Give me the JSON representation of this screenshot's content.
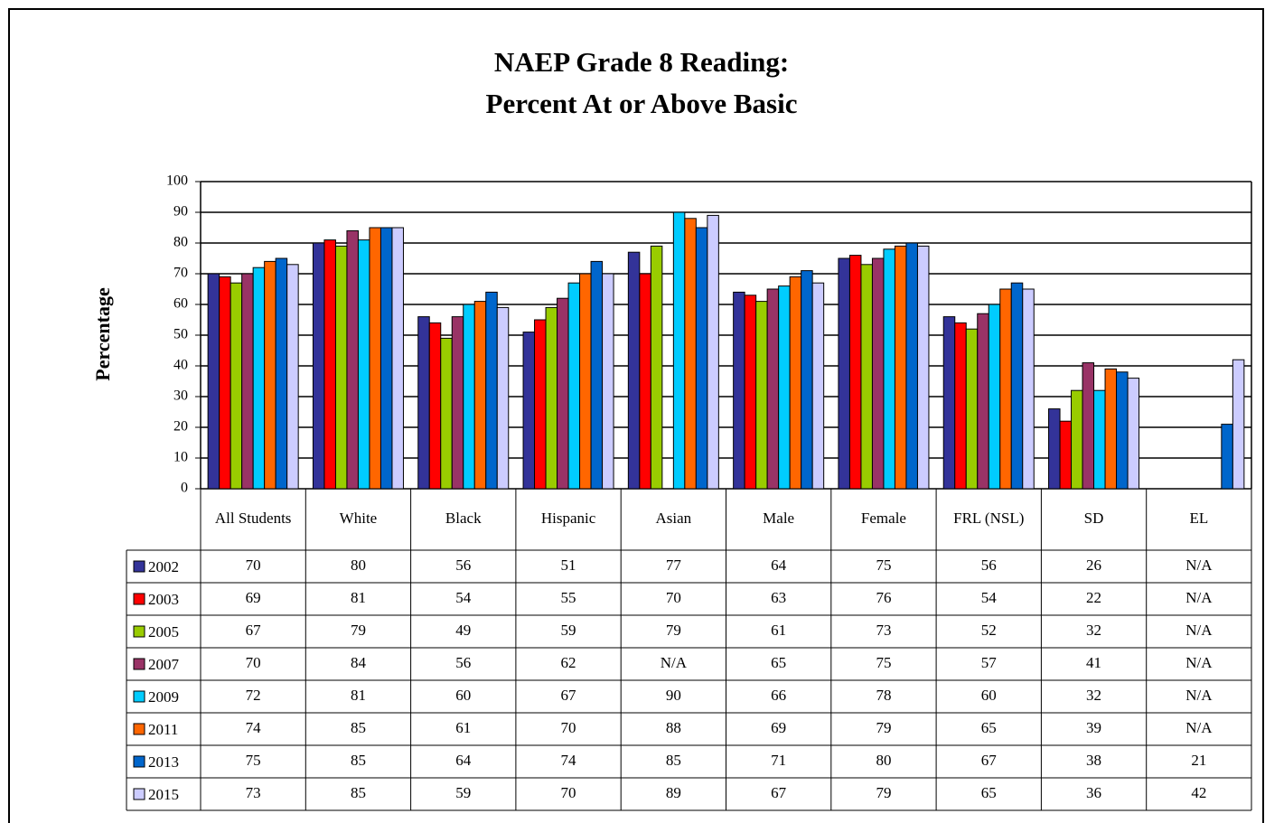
{
  "chart_data": {
    "type": "bar",
    "title": [
      "NAEP Grade 8 Reading:",
      "Percent At or Above Basic"
    ],
    "y_label": "Percentage",
    "categories": [
      "All Students",
      "White",
      "Black",
      "Hispanic",
      "Asian",
      "Male",
      "Female",
      "FRL (NSL)",
      "SD",
      "EL"
    ],
    "series": [
      {
        "name": "2002",
        "color": "#333399",
        "values": [
          70,
          80,
          56,
          51,
          77,
          64,
          75,
          56,
          26,
          null
        ],
        "value_labels": [
          null,
          null,
          null,
          null,
          null,
          null,
          null,
          null,
          null,
          "N/A"
        ]
      },
      {
        "name": "2003",
        "color": "#ff0000",
        "values": [
          69,
          81,
          54,
          55,
          70,
          63,
          76,
          54,
          22,
          null
        ],
        "value_labels": [
          null,
          null,
          null,
          null,
          null,
          null,
          null,
          null,
          null,
          "N/A"
        ]
      },
      {
        "name": "2005",
        "color": "#99cc00",
        "values": [
          67,
          79,
          49,
          59,
          79,
          61,
          73,
          52,
          32,
          null
        ],
        "value_labels": [
          null,
          null,
          null,
          null,
          null,
          null,
          null,
          null,
          null,
          "N/A"
        ]
      },
      {
        "name": "2007",
        "color": "#993366",
        "values": [
          70,
          84,
          56,
          62,
          null,
          65,
          75,
          57,
          41,
          null
        ],
        "value_labels": [
          null,
          null,
          null,
          null,
          "N/A",
          null,
          null,
          null,
          null,
          "N/A"
        ]
      },
      {
        "name": "2009",
        "color": "#00ccff",
        "values": [
          72,
          81,
          60,
          67,
          90,
          66,
          78,
          60,
          32,
          null
        ],
        "value_labels": [
          null,
          null,
          null,
          null,
          null,
          null,
          null,
          null,
          null,
          "N/A"
        ]
      },
      {
        "name": "2011",
        "color": "#ff6600",
        "values": [
          74,
          85,
          61,
          70,
          88,
          69,
          79,
          65,
          39,
          null
        ],
        "value_labels": [
          null,
          null,
          null,
          null,
          null,
          null,
          null,
          null,
          null,
          "N/A"
        ]
      },
      {
        "name": "2013",
        "color": "#0066cc",
        "values": [
          75,
          85,
          64,
          74,
          85,
          71,
          80,
          67,
          38,
          21
        ],
        "value_labels": [
          null,
          null,
          null,
          null,
          null,
          null,
          null,
          null,
          null,
          null
        ]
      },
      {
        "name": "2015",
        "color": "#ccccff",
        "values": [
          73,
          85,
          59,
          70,
          89,
          67,
          79,
          65,
          36,
          42
        ],
        "value_labels": [
          null,
          null,
          null,
          null,
          null,
          null,
          null,
          null,
          null,
          null
        ]
      }
    ],
    "ylim": [
      0,
      100
    ],
    "yticks": [
      0,
      10,
      20,
      30,
      40,
      50,
      60,
      70,
      80,
      90,
      100
    ],
    "grid": true
  }
}
